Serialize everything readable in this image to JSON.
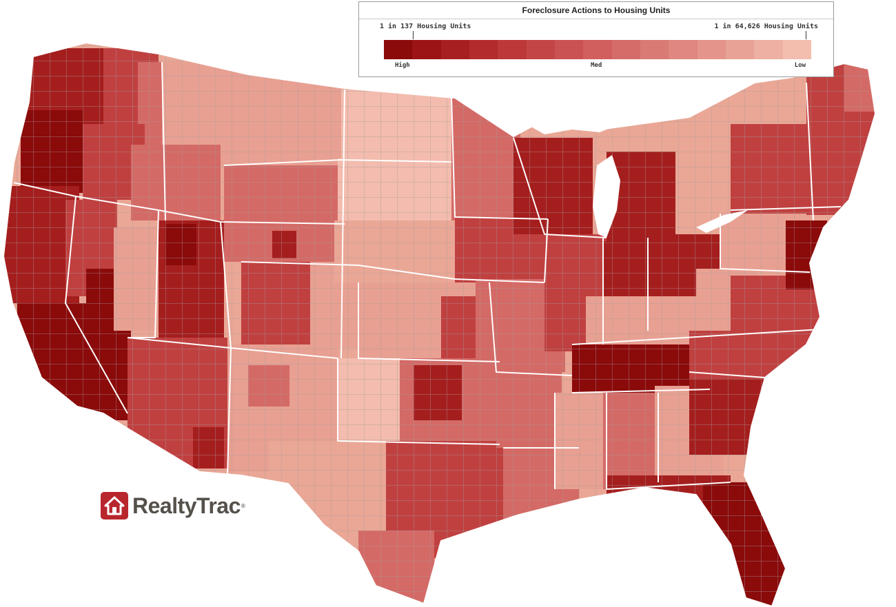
{
  "legend": {
    "title": "Foreclosure Actions to Housing Units",
    "scale_high_label": "1 in 137 Housing Units",
    "scale_low_label": "1 in 64,626 Housing Units",
    "ramp_high": "High",
    "ramp_med": "Med",
    "ramp_low": "Low",
    "ramp_colors": [
      "#8b0a0a",
      "#9c1414",
      "#a81f1f",
      "#b32b2b",
      "#bd3838",
      "#c44545",
      "#ca5252",
      "#d05f5e",
      "#d56c69",
      "#da7a75",
      "#df8780",
      "#e4948b",
      "#e9a296",
      "#eeb0a2",
      "#f3beae"
    ]
  },
  "logo": {
    "brand": "RealtyTrac",
    "mark": "®",
    "brand_color": "#b8272d"
  },
  "map": {
    "colors": {
      "very_high": "#8b0a0a",
      "high": "#a51e1e",
      "med_high": "#c04040",
      "med": "#d46a66",
      "med_low": "#e8a092",
      "low": "#f3bcae",
      "no_data": "#ffffff",
      "county_border": "#9a9a9a",
      "state_border": "#ffffff"
    }
  }
}
